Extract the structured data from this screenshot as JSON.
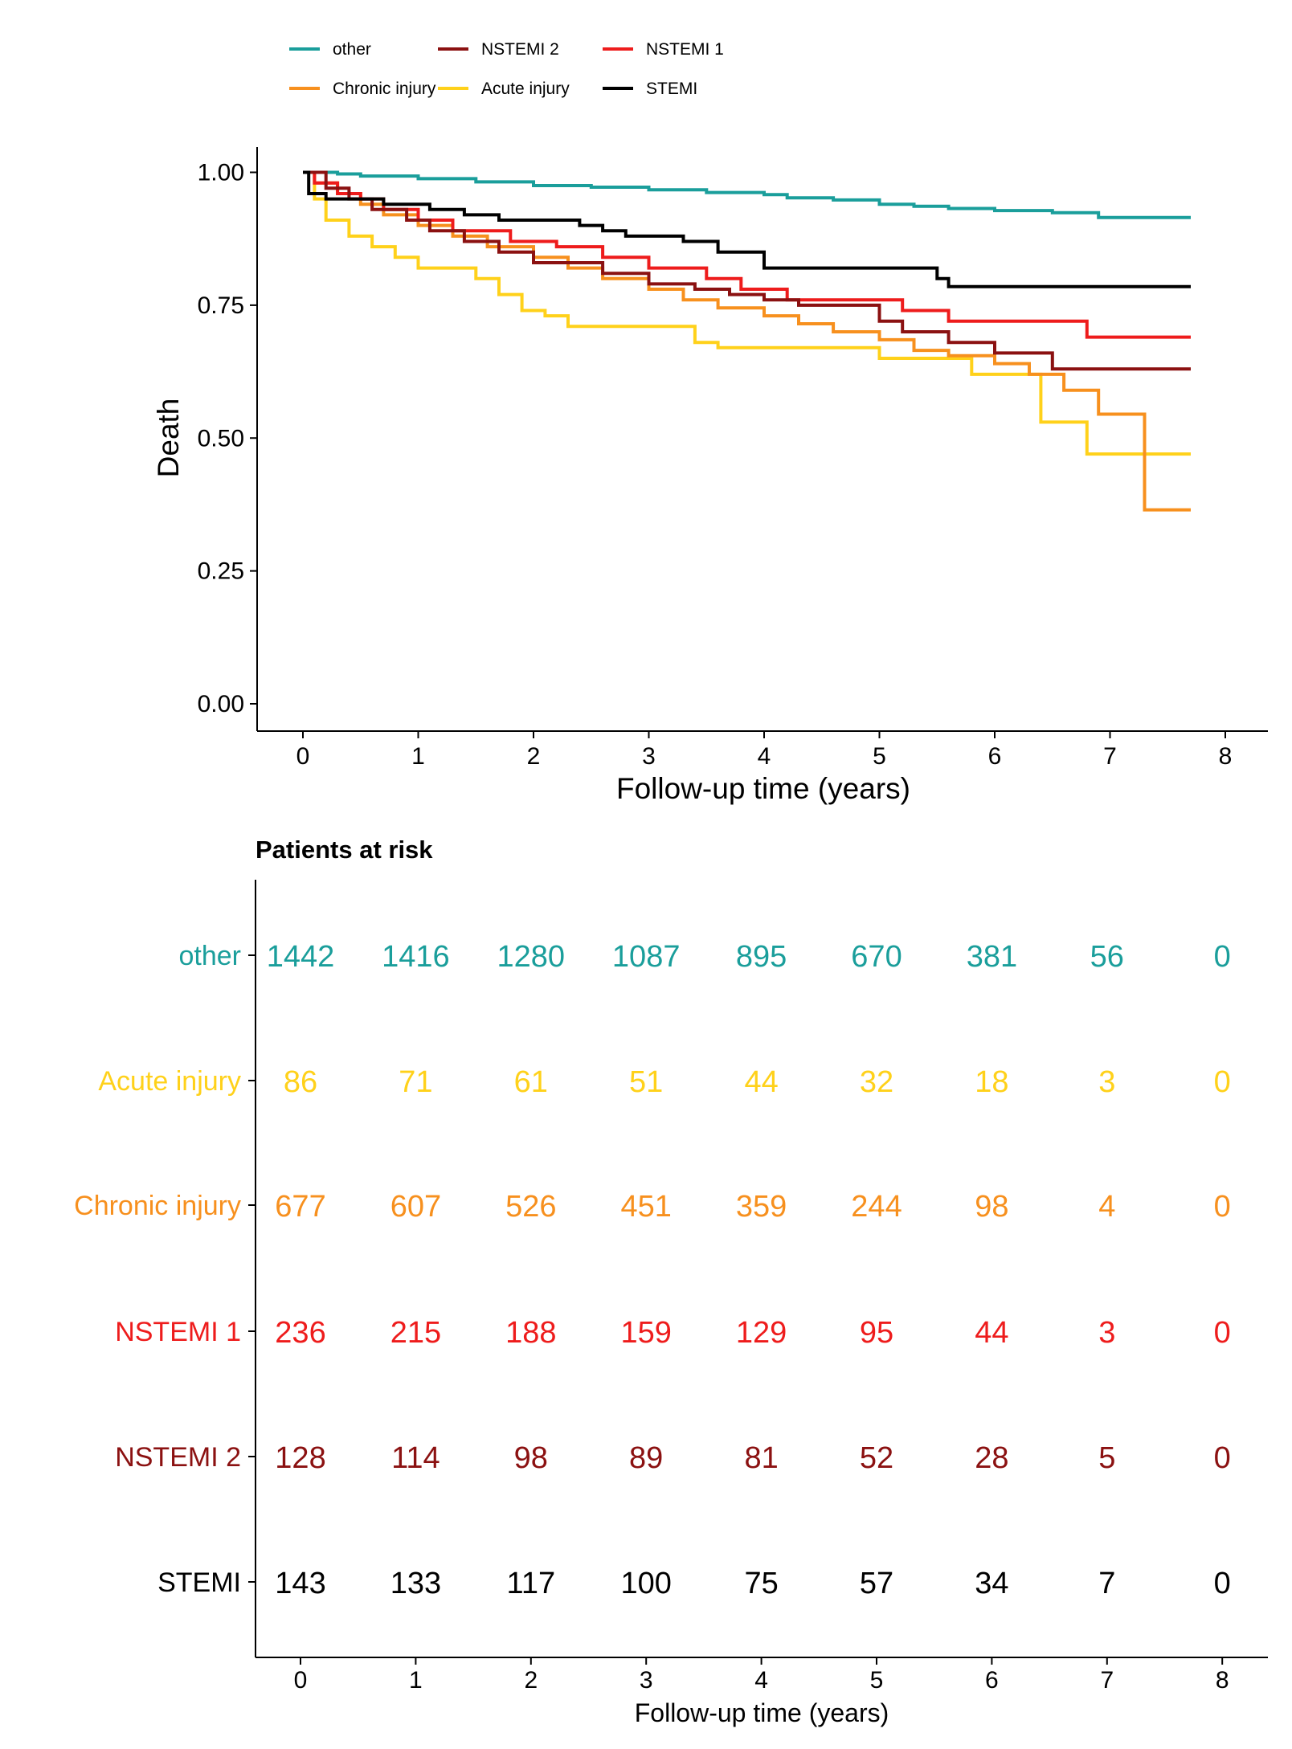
{
  "chart_data": [
    {
      "type": "line",
      "step": true,
      "xlabel": "Follow-up time (years)",
      "ylabel": "Death",
      "xlim": [
        0,
        8
      ],
      "ylim": [
        0,
        1
      ],
      "x_ticks": [
        "0",
        "1",
        "2",
        "3",
        "4",
        "5",
        "6",
        "7",
        "8"
      ],
      "y_ticks": [
        "0.00",
        "0.25",
        "0.50",
        "0.75",
        "1.00"
      ],
      "grid": false,
      "legend_position": "top",
      "series": [
        {
          "name": "other",
          "color": "#1a9e9b",
          "x": [
            0,
            0.3,
            0.5,
            1.0,
            1.5,
            2.0,
            2.5,
            3.0,
            3.5,
            4.0,
            4.2,
            4.6,
            5.0,
            5.3,
            5.6,
            6.0,
            6.5,
            6.9,
            7.7
          ],
          "y": [
            1.0,
            0.997,
            0.993,
            0.988,
            0.982,
            0.975,
            0.972,
            0.967,
            0.962,
            0.958,
            0.952,
            0.948,
            0.94,
            0.936,
            0.932,
            0.928,
            0.924,
            0.915,
            0.915
          ]
        },
        {
          "name": "Acute injury",
          "color": "#ffd11a",
          "x": [
            0,
            0.1,
            0.2,
            0.4,
            0.6,
            0.8,
            1.0,
            1.5,
            1.7,
            1.9,
            2.1,
            2.3,
            3.0,
            3.4,
            3.6,
            5.0,
            5.8,
            6.4,
            6.8,
            7.7
          ],
          "y": [
            1.0,
            0.95,
            0.91,
            0.88,
            0.86,
            0.84,
            0.82,
            0.8,
            0.77,
            0.74,
            0.73,
            0.71,
            0.71,
            0.68,
            0.67,
            0.65,
            0.62,
            0.53,
            0.47,
            0.47
          ]
        },
        {
          "name": "Chronic injury",
          "color": "#f7901e",
          "x": [
            0,
            0.1,
            0.3,
            0.5,
            0.7,
            1.0,
            1.3,
            1.6,
            2.0,
            2.3,
            2.6,
            3.0,
            3.3,
            3.6,
            4.0,
            4.3,
            4.6,
            5.0,
            5.3,
            5.6,
            6.0,
            6.3,
            6.6,
            6.9,
            7.3,
            7.7
          ],
          "y": [
            1.0,
            0.98,
            0.96,
            0.94,
            0.92,
            0.9,
            0.88,
            0.86,
            0.84,
            0.82,
            0.8,
            0.78,
            0.76,
            0.745,
            0.73,
            0.715,
            0.7,
            0.685,
            0.665,
            0.655,
            0.64,
            0.62,
            0.59,
            0.545,
            0.365,
            0.365
          ]
        },
        {
          "name": "NSTEMI 1",
          "color": "#ee1c1c",
          "x": [
            0,
            0.1,
            0.3,
            0.5,
            0.7,
            1.0,
            1.3,
            1.8,
            2.2,
            2.6,
            3.0,
            3.5,
            3.8,
            4.2,
            5.2,
            5.6,
            6.8,
            7.7
          ],
          "y": [
            1.0,
            0.98,
            0.96,
            0.95,
            0.93,
            0.91,
            0.89,
            0.87,
            0.86,
            0.84,
            0.82,
            0.8,
            0.78,
            0.76,
            0.74,
            0.72,
            0.69,
            0.69
          ]
        },
        {
          "name": "NSTEMI 2",
          "color": "#8b1111",
          "x": [
            0,
            0.2,
            0.4,
            0.6,
            0.9,
            1.1,
            1.4,
            1.7,
            2.0,
            2.6,
            3.0,
            3.4,
            3.7,
            4.0,
            4.3,
            5.0,
            5.2,
            5.6,
            6.0,
            6.5,
            7.7
          ],
          "y": [
            1.0,
            0.97,
            0.95,
            0.93,
            0.91,
            0.89,
            0.87,
            0.85,
            0.83,
            0.81,
            0.79,
            0.78,
            0.77,
            0.76,
            0.75,
            0.72,
            0.7,
            0.68,
            0.66,
            0.63,
            0.63
          ]
        },
        {
          "name": "STEMI",
          "color": "#000000",
          "x": [
            0,
            0.05,
            0.2,
            0.7,
            1.1,
            1.4,
            1.7,
            2.4,
            2.6,
            2.8,
            3.3,
            3.6,
            4.0,
            5.5,
            5.6,
            7.7
          ],
          "y": [
            1.0,
            0.96,
            0.95,
            0.94,
            0.93,
            0.92,
            0.91,
            0.9,
            0.89,
            0.88,
            0.87,
            0.85,
            0.82,
            0.8,
            0.785,
            0.785
          ]
        }
      ]
    },
    {
      "type": "table",
      "title": "Patients at risk",
      "xlabel": "Follow-up time (years)",
      "x_ticks": [
        "0",
        "1",
        "2",
        "3",
        "4",
        "5",
        "6",
        "7",
        "8"
      ],
      "rows": [
        {
          "label": "other",
          "color": "#1a9e9b",
          "values": [
            "1442",
            "1416",
            "1280",
            "1087",
            "895",
            "670",
            "381",
            "56",
            "0"
          ]
        },
        {
          "label": "Acute injury",
          "color": "#ffd11a",
          "values": [
            "86",
            "71",
            "61",
            "51",
            "44",
            "32",
            "18",
            "3",
            "0"
          ]
        },
        {
          "label": "Chronic injury",
          "color": "#f7901e",
          "values": [
            "677",
            "607",
            "526",
            "451",
            "359",
            "244",
            "98",
            "4",
            "0"
          ]
        },
        {
          "label": "NSTEMI 1",
          "color": "#ee1c1c",
          "values": [
            "236",
            "215",
            "188",
            "159",
            "129",
            "95",
            "44",
            "3",
            "0"
          ]
        },
        {
          "label": "NSTEMI 2",
          "color": "#8b1111",
          "values": [
            "128",
            "114",
            "98",
            "89",
            "81",
            "52",
            "28",
            "5",
            "0"
          ]
        },
        {
          "label": "STEMI",
          "color": "#000000",
          "values": [
            "143",
            "133",
            "117",
            "100",
            "75",
            "57",
            "34",
            "7",
            "0"
          ]
        }
      ]
    }
  ]
}
